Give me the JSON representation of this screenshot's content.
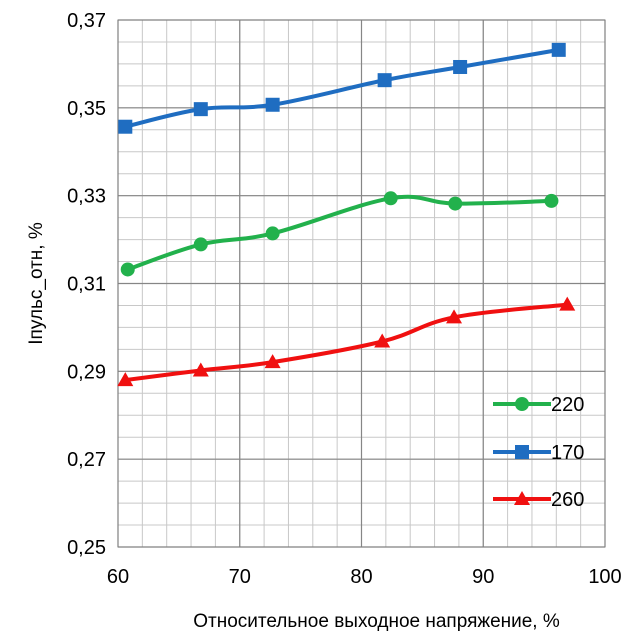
{
  "chart_data": {
    "type": "line",
    "xlabel": "Относительное выходное напряжение, %",
    "ylabel": "Iпульс_отн, %",
    "xlim": [
      60,
      100
    ],
    "ylim": [
      0.25,
      0.37
    ],
    "x_ticks": [
      60,
      70,
      80,
      90,
      100
    ],
    "x_tick_labels": [
      "60",
      "70",
      "80",
      "90",
      "100"
    ],
    "y_ticks": [
      0.25,
      0.27,
      0.29,
      0.31,
      0.33,
      0.35,
      0.37
    ],
    "y_tick_labels": [
      "0,25",
      "0,27",
      "0,29",
      "0,31",
      "0,33",
      "0,35",
      "0,37"
    ],
    "grid": true,
    "legend_position": "bottom-right",
    "series": [
      {
        "name": "220",
        "color": "#22B14C",
        "marker": "circle",
        "points": [
          [
            60.8,
            0.3132
          ],
          [
            66.8,
            0.3189
          ],
          [
            72.7,
            0.3214
          ],
          [
            82.4,
            0.3294
          ],
          [
            87.7,
            0.3282
          ],
          [
            95.6,
            0.3288
          ]
        ]
      },
      {
        "name": "170",
        "color": "#1F6DC1",
        "marker": "square",
        "points": [
          [
            60.6,
            0.3457
          ],
          [
            66.8,
            0.3497
          ],
          [
            72.7,
            0.3507
          ],
          [
            81.9,
            0.3563
          ],
          [
            88.1,
            0.3593
          ],
          [
            96.2,
            0.3632
          ]
        ]
      },
      {
        "name": "260",
        "color": "#F01010",
        "marker": "triangle",
        "points": [
          [
            60.6,
            0.288
          ],
          [
            66.8,
            0.2902
          ],
          [
            72.7,
            0.2921
          ],
          [
            81.7,
            0.2968
          ],
          [
            87.6,
            0.3023
          ],
          [
            96.9,
            0.3052
          ]
        ]
      }
    ]
  }
}
